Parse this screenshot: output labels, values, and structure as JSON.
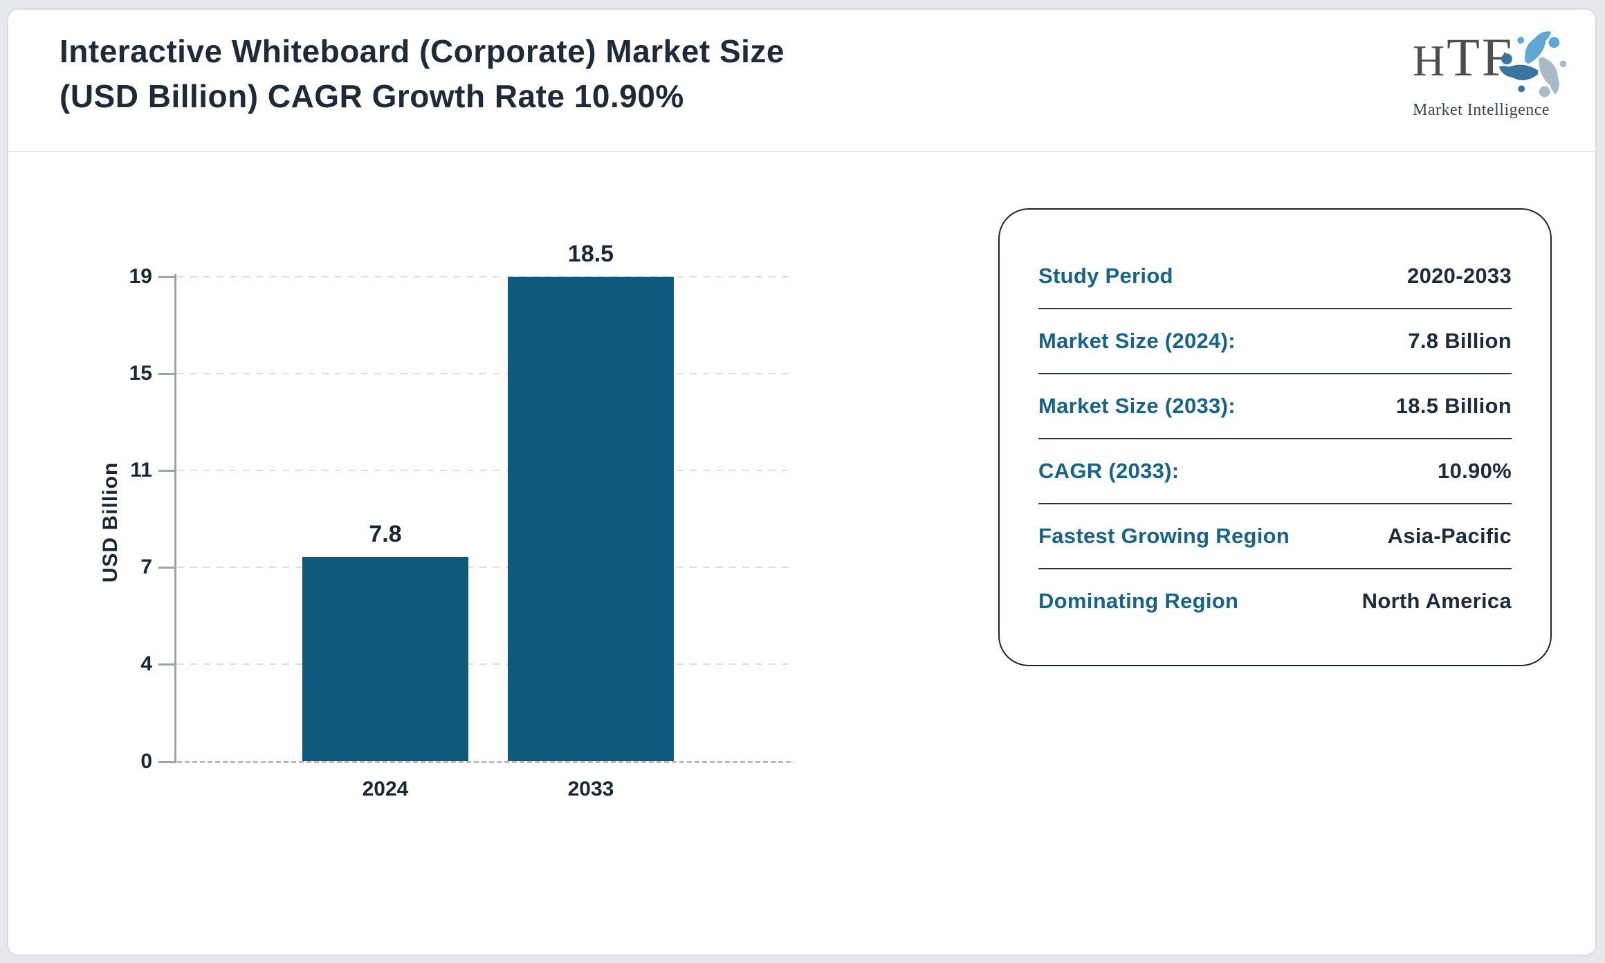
{
  "page": {
    "title_line1": "Interactive Whiteboard (Corporate) Market Size",
    "title_line2": "(USD Billion) CAGR Growth Rate 10.90%"
  },
  "logo": {
    "acronym": "HTF",
    "tagline": "Market Intelligence"
  },
  "chart_data": {
    "type": "bar",
    "title": "Interactive Whiteboard (Corporate) Market Size (USD Billion) CAGR Growth Rate 10.90%",
    "categories": [
      "2024",
      "2033"
    ],
    "values": [
      7.8,
      18.5
    ],
    "bar_value_labels": [
      "7.8",
      "18.5"
    ],
    "ylabel": "USD Billion",
    "xlabel": "",
    "ylim": [
      0,
      18.5
    ],
    "ytick_labels": [
      "0",
      "4",
      "7",
      "11",
      "15",
      "19"
    ],
    "grid": "horizontal-dashed",
    "legend": "none",
    "bar_color": "#0e5a7c"
  },
  "summary_card": {
    "rows": [
      {
        "label": "Study Period",
        "value": "2020-2033"
      },
      {
        "label": "Market Size (2024):",
        "value": "7.8 Billion"
      },
      {
        "label": "Market Size (2033):",
        "value": "18.5 Billion"
      },
      {
        "label": "CAGR (2033):",
        "value": "10.90%"
      },
      {
        "label": "Fastest Growing Region",
        "value": "Asia-Pacific"
      },
      {
        "label": "Dominating Region",
        "value": "North America"
      }
    ]
  },
  "colors": {
    "bar": "#0e5a7c",
    "card_label": "#176389",
    "card_value": "#1e2b3c",
    "title_text": "#1f2a38",
    "axis": "#9aa2ac",
    "page_background": "#e7e8ec"
  }
}
